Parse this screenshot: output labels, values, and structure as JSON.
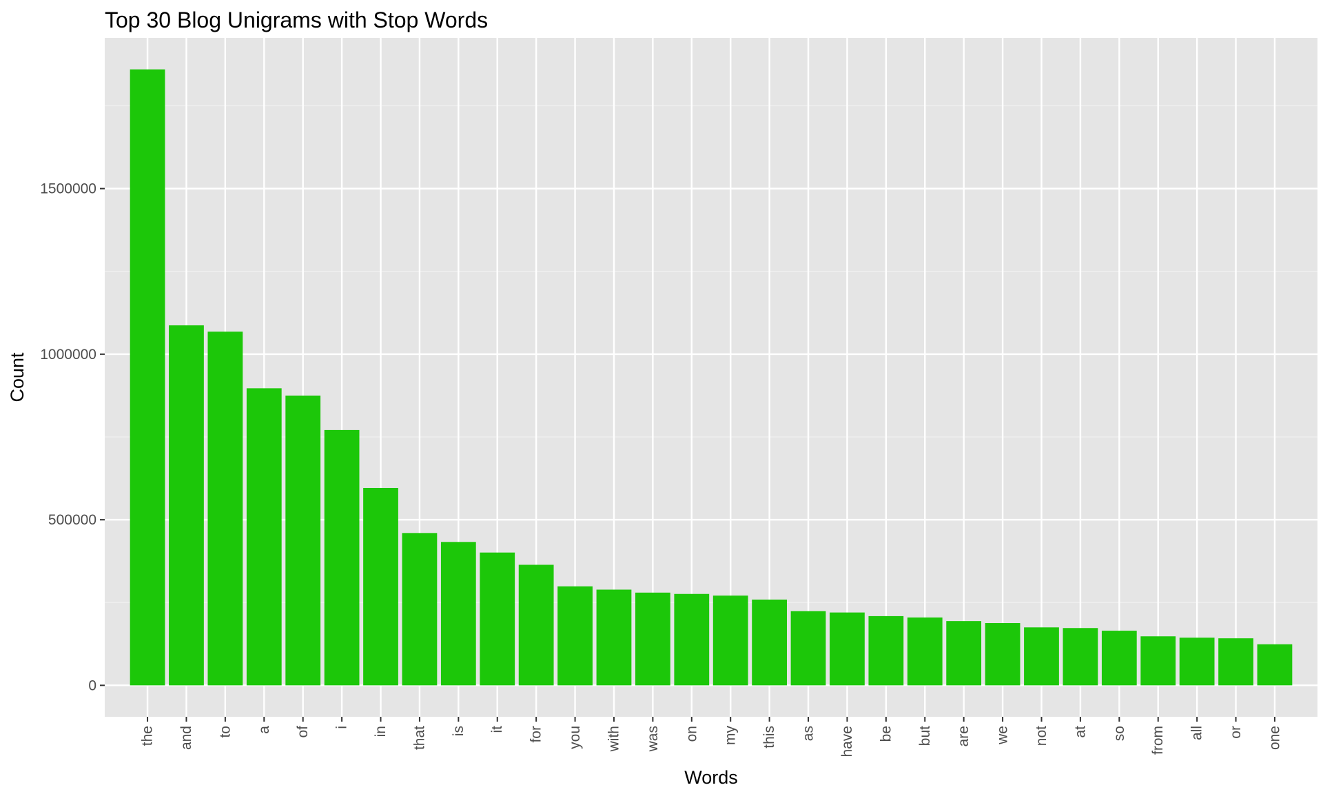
{
  "chart_data": {
    "type": "bar",
    "title": "Top 30 Blog Unigrams with Stop Words",
    "xlabel": "Words",
    "ylabel": "Count",
    "categories": [
      "the",
      "and",
      "to",
      "a",
      "of",
      "i",
      "in",
      "that",
      "is",
      "it",
      "for",
      "you",
      "with",
      "was",
      "on",
      "my",
      "this",
      "as",
      "have",
      "be",
      "but",
      "are",
      "we",
      "not",
      "at",
      "so",
      "from",
      "all",
      "or",
      "one"
    ],
    "values": [
      1860000,
      1087000,
      1068000,
      897000,
      875000,
      771000,
      596000,
      460000,
      433000,
      401000,
      364000,
      299000,
      289000,
      280000,
      276000,
      271000,
      259000,
      224000,
      220000,
      209000,
      205000,
      194000,
      188000,
      175000,
      173000,
      165000,
      148000,
      144000,
      142000,
      124000
    ],
    "ylim": [
      -95000,
      1955000
    ],
    "yticks": [
      0,
      500000,
      1000000,
      1500000
    ],
    "ytick_labels": [
      "0",
      "500000",
      "1000000",
      "1500000"
    ],
    "grid": true,
    "legend": "none",
    "colors": {
      "bar": "#1cc709",
      "panel": "#e5e5e5",
      "grid_major": "#ffffff",
      "grid_minor": "#f0f0f0",
      "tick": "#333333"
    }
  }
}
